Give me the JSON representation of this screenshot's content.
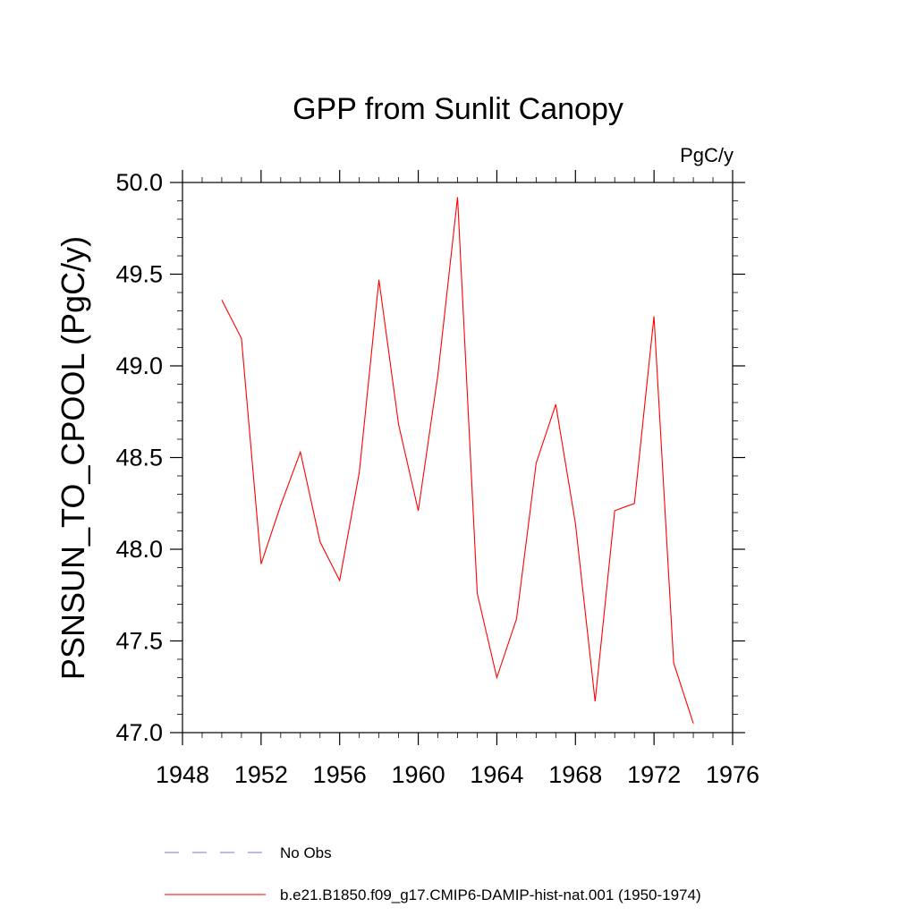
{
  "chart_data": {
    "type": "line",
    "title": "GPP from Sunlit Canopy",
    "units": "PgC/y",
    "xlabel": "",
    "ylabel": "PSNSUN_TO_CPOOL  (PgC/y)",
    "xlim": [
      1948,
      1976
    ],
    "ylim": [
      47.0,
      50.0
    ],
    "x_ticks": [
      1948,
      1952,
      1956,
      1960,
      1964,
      1968,
      1972,
      1976
    ],
    "x_tick_labels": [
      "1948",
      "1952",
      "1956",
      "1960",
      "1964",
      "1968",
      "1972",
      "1976"
    ],
    "y_ticks": [
      47.0,
      47.5,
      48.0,
      48.5,
      49.0,
      49.5,
      50.0
    ],
    "y_tick_labels": [
      "47.0",
      "47.5",
      "48.0",
      "48.5",
      "49.0",
      "49.5",
      "50.0"
    ],
    "grid": false,
    "legend_position": "bottom",
    "series": [
      {
        "name": "No Obs",
        "color": "#7a7ad8",
        "dash": "dashed",
        "x": [],
        "y": []
      },
      {
        "name": "b.e21.B1850.f09_g17.CMIP6-DAMIP-hist-nat.001 (1950-1974)",
        "color": "#ff0000",
        "dash": "solid",
        "x": [
          1950,
          1951,
          1952,
          1953,
          1954,
          1955,
          1956,
          1957,
          1958,
          1959,
          1960,
          1961,
          1962,
          1963,
          1964,
          1965,
          1966,
          1967,
          1968,
          1969,
          1970,
          1971,
          1972,
          1973,
          1974
        ],
        "y": [
          49.36,
          49.15,
          47.92,
          48.24,
          48.53,
          48.04,
          47.83,
          48.42,
          49.47,
          48.68,
          48.21,
          48.95,
          49.92,
          47.76,
          47.3,
          47.62,
          48.47,
          48.79,
          48.14,
          47.17,
          48.21,
          48.25,
          49.27,
          47.38,
          47.05
        ]
      }
    ]
  }
}
